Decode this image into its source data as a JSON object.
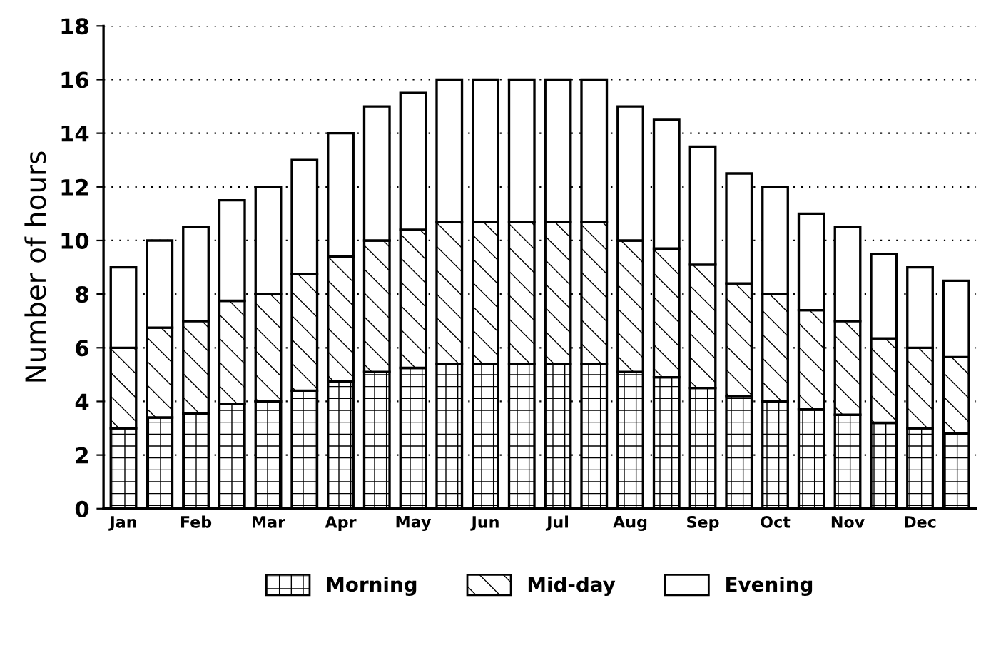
{
  "chart_data": {
    "type": "bar",
    "stacked": true,
    "ylabel": "Number of hours",
    "categories": [
      "Jan",
      null,
      "Feb",
      null,
      "Mar",
      null,
      "Apr",
      null,
      "May",
      null,
      "Jun",
      null,
      "Jul",
      null,
      "Aug",
      null,
      "Sep",
      null,
      "Oct",
      null,
      "Nov",
      null,
      "Dec",
      null
    ],
    "series": [
      {
        "name": "Morning",
        "color": "#ffffff",
        "values": [
          3,
          3.4,
          3.55,
          3.9,
          4,
          4.4,
          4.75,
          5.1,
          5.25,
          5.4,
          5.4,
          5.4,
          5.4,
          5.4,
          5.1,
          4.9,
          4.5,
          4.2,
          4,
          3.7,
          3.5,
          3.2,
          3,
          2.8
        ]
      },
      {
        "name": "Mid-day",
        "color": "#ffffff",
        "values": [
          3,
          3.35,
          3.45,
          3.85,
          4,
          4.35,
          4.65,
          4.9,
          5.15,
          5.3,
          5.3,
          5.3,
          5.3,
          5.3,
          4.9,
          4.8,
          4.6,
          4.2,
          4,
          3.7,
          3.5,
          3.15,
          3,
          2.85
        ]
      },
      {
        "name": "Evening",
        "color": "#ffffff",
        "values": [
          3,
          3.25,
          3.5,
          3.75,
          4,
          4.25,
          4.6,
          5,
          5.1,
          5.3,
          5.3,
          5.3,
          5.3,
          5.3,
          5,
          4.8,
          4.4,
          4.1,
          4,
          3.6,
          3.5,
          3.15,
          3,
          2.85
        ]
      }
    ],
    "ylim": [
      0,
      18
    ],
    "yticks": [
      0,
      2,
      4,
      6,
      8,
      10,
      12,
      14,
      16,
      18
    ],
    "grid": "y",
    "legend": "bottom"
  }
}
